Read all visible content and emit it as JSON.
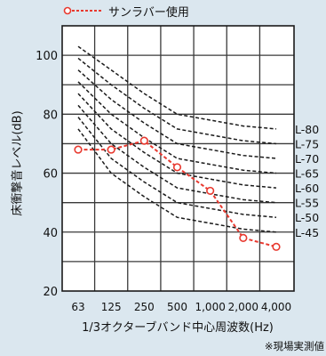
{
  "chart_data": {
    "type": "line",
    "legend": {
      "label": "サンラバー使用",
      "color": "#e8392f",
      "position": "top-left"
    },
    "categories": [
      "63",
      "125",
      "250",
      "500",
      "1,000",
      "2,000",
      "4,000"
    ],
    "ylabel": "床衝撃音レベル(dB)",
    "xlabel": "1/3オクターブバンド中心周波数(Hz)",
    "ylim": [
      20,
      110
    ],
    "yticks": [
      20,
      40,
      60,
      80,
      100
    ],
    "grid": true,
    "series": [
      {
        "name": "サンラバー使用",
        "values": [
          68,
          68,
          71,
          62,
          54,
          38,
          35
        ],
        "color": "#e8392f"
      }
    ],
    "reference_curves": [
      {
        "name": "L-80",
        "values": [
          103,
          95,
          87,
          80,
          78,
          76,
          75
        ]
      },
      {
        "name": "L-75",
        "values": [
          99,
          90,
          82,
          75,
          73,
          71,
          70
        ]
      },
      {
        "name": "L-70",
        "values": [
          95,
          85,
          77,
          70,
          68,
          66,
          65
        ]
      },
      {
        "name": "L-65",
        "values": [
          91,
          80,
          72,
          65,
          63,
          61,
          60
        ]
      },
      {
        "name": "L-60",
        "values": [
          87,
          75,
          67,
          60,
          58,
          56,
          55
        ]
      },
      {
        "name": "L-55",
        "values": [
          83,
          70,
          62,
          55,
          53,
          51,
          50
        ]
      },
      {
        "name": "L-50",
        "values": [
          79,
          65,
          57,
          50,
          48,
          46,
          45
        ]
      },
      {
        "name": "L-45",
        "values": [
          75,
          60,
          52,
          45,
          43,
          41,
          40
        ]
      }
    ],
    "reference_style": {
      "color": "#1a1a1a"
    },
    "note": "※現場実測値"
  }
}
